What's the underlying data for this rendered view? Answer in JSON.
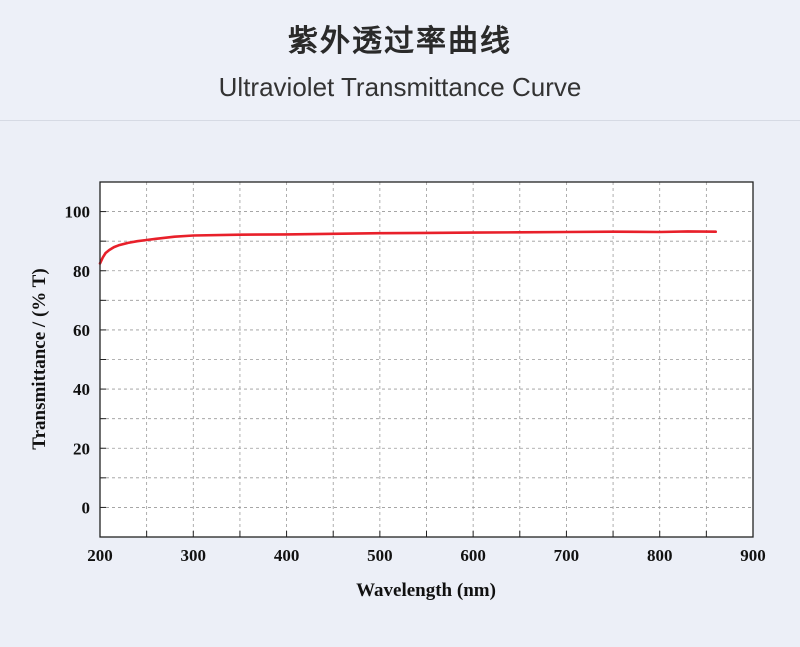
{
  "header": {
    "title_cn": "紫外透过率曲线",
    "title_en": "Ultraviolet Transmittance Curve"
  },
  "chart_data": {
    "type": "line",
    "xlabel": "Wavelength (nm)",
    "ylabel": "Transmittance / (% T)",
    "xlim": [
      200,
      900
    ],
    "ylim": [
      -10,
      110
    ],
    "x_ticks": [
      200,
      300,
      400,
      500,
      600,
      700,
      800,
      900
    ],
    "y_ticks": [
      0,
      20,
      40,
      60,
      80,
      100
    ],
    "grid": true,
    "grid_style": "dashed",
    "series": [
      {
        "color": "#e8202a",
        "x": [
          200,
          203,
          206,
          210,
          215,
          220,
          230,
          240,
          250,
          260,
          280,
          300,
          350,
          400,
          450,
          500,
          550,
          600,
          650,
          700,
          750,
          800,
          830,
          860
        ],
        "y": [
          82.5,
          84.5,
          86,
          87,
          88,
          88.6,
          89.4,
          90,
          90.4,
          90.8,
          91.5,
          91.9,
          92.2,
          92.3,
          92.5,
          92.7,
          92.8,
          92.9,
          93.0,
          93.1,
          93.2,
          93.1,
          93.3,
          93.2
        ]
      }
    ]
  }
}
